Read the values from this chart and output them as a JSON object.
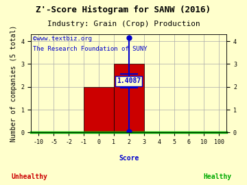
{
  "title_line1": "Z'-Score Histogram for SANW (2016)",
  "title_line2": "Industry: Grain (Crop) Production",
  "watermark_line1": "©www.textbiz.org",
  "watermark_line2": "The Research Foundation of SUNY",
  "xtick_labels": [
    "-10",
    "-5",
    "-2",
    "-1",
    "0",
    "1",
    "2",
    "3",
    "4",
    "5",
    "6",
    "10",
    "100"
  ],
  "xtick_real_vals": [
    -10,
    -5,
    -2,
    -1,
    0,
    1,
    2,
    3,
    4,
    5,
    6,
    10,
    100
  ],
  "bar_data": [
    {
      "x_left_real": -1,
      "x_right_real": 1,
      "height": 2,
      "color": "#cc0000"
    },
    {
      "x_left_real": 1,
      "x_right_real": 3,
      "height": 3,
      "color": "#cc0000"
    }
  ],
  "zscore_value": 1.4087,
  "zscore_real_x": 2.0,
  "zscore_line_color": "#0000cc",
  "zscore_label_color": "#0000cc",
  "hline_y_top": 2.5,
  "hline_y_bot": 2.0,
  "xlabel": "Score",
  "ylabel": "Number of companies (5 total)",
  "unhealthy_label": "Unhealthy",
  "healthy_label": "Healthy",
  "unhealthy_color": "#cc0000",
  "healthy_color": "#00aa00",
  "xlabel_color": "#0000cc",
  "xlim_idx": [
    -0.5,
    12.5
  ],
  "ylim": [
    0,
    4.3
  ],
  "ytick_positions": [
    0,
    1,
    2,
    3,
    4
  ],
  "grid_color": "#aaaaaa",
  "bg_color": "#ffffcc",
  "spine_bottom_color": "#00aa00",
  "title_color": "#000000",
  "title_fontsize": 9,
  "subtitle_fontsize": 8,
  "watermark_fontsize": 6.5,
  "axis_label_fontsize": 7,
  "tick_fontsize": 6
}
